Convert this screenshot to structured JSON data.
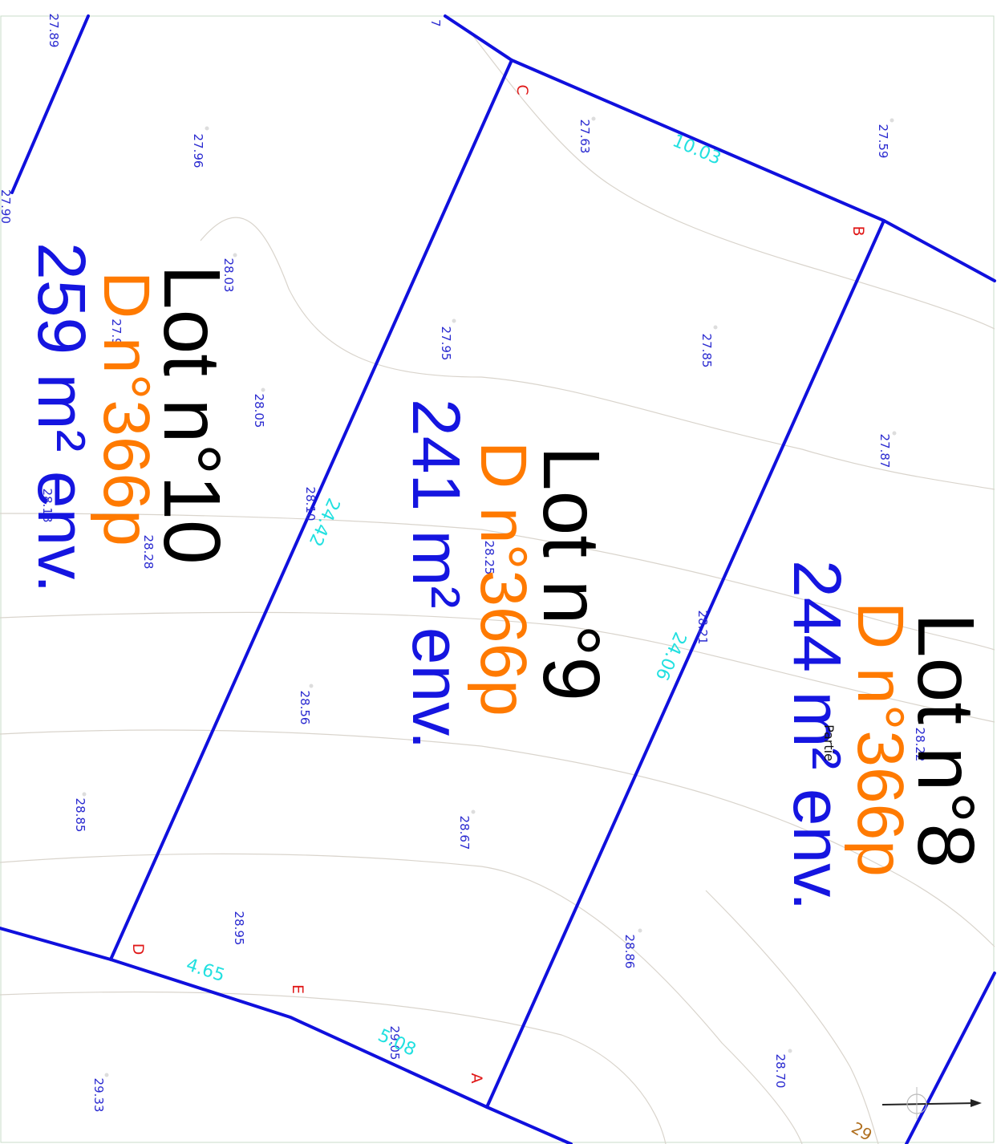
{
  "lots": [
    {
      "name": "Lot n°8",
      "parcel": "D n°366p",
      "area": "244 m² env."
    },
    {
      "name": "Lot n°9",
      "parcel": "D n°366p",
      "area": "241 m² env."
    },
    {
      "name": "Lot n°10",
      "parcel": "D n°366p",
      "area": "259 m² env."
    }
  ],
  "corners": [
    "A",
    "B",
    "C",
    "D",
    "E"
  ],
  "dimensions": [
    "10.03",
    "24.06",
    "24.42",
    "4.65",
    "5.08"
  ],
  "spot_heights": [
    "27.89",
    "27.96",
    "28.03",
    "27.9",
    "28.05",
    "28.10",
    "28.18",
    "28.28",
    "28.56",
    "28.85",
    "28.95",
    "29.05",
    "29.33",
    "27.63",
    "27.95",
    "28.25",
    "28.67",
    "28.86",
    "28.21",
    "27.59",
    "27.85",
    "27.87",
    "28.22",
    "28.70"
  ],
  "misc_labels": {
    "fragment_a": "7",
    "fragment_b": "27.90",
    "fragment_c": "Partie",
    "fragment_d": "29"
  },
  "colors": {
    "boundary": "#1010dd",
    "lot_name": "#000000",
    "parcel": "#ff7a00",
    "area": "#1515e0",
    "dimension": "#22e0e0",
    "corner": "#e01818",
    "spot": "#2a2ad0"
  }
}
